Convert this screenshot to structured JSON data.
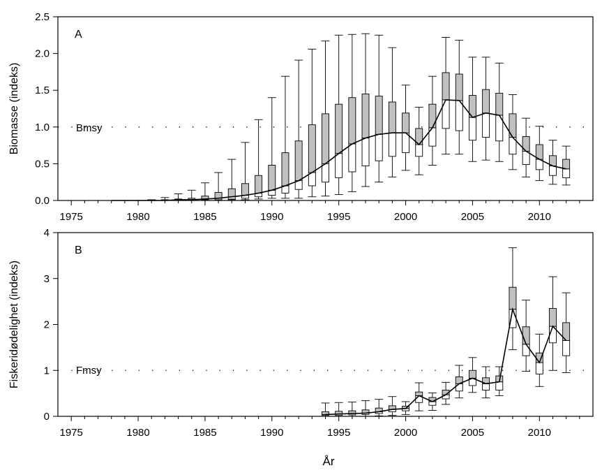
{
  "figure": {
    "xlabel": "År"
  },
  "chart_data": [
    {
      "panel": "A",
      "type": "boxplot",
      "ylabel": "Biomasse (indeks)",
      "ylim": [
        0,
        2.5
      ],
      "yticks": [
        0.0,
        0.5,
        1.0,
        1.5,
        2.0,
        2.5
      ],
      "ytick_labels": [
        "0.0",
        "0.5",
        "1.0",
        "1.5",
        "2.0",
        "2.5"
      ],
      "xlim": [
        1974,
        2014
      ],
      "xticks": [
        1975,
        1980,
        1985,
        1990,
        1995,
        2000,
        2005,
        2010
      ],
      "xtick_labels": [
        "1975",
        "1980",
        "1985",
        "1990",
        "1995",
        "2000",
        "2005",
        "2010"
      ],
      "reference": {
        "label": "Bmsy",
        "value": 1.0
      },
      "series": [
        {
          "name": "Biomasse",
          "years": [
            1978,
            1979,
            1980,
            1981,
            1982,
            1983,
            1984,
            1985,
            1986,
            1987,
            1988,
            1989,
            1990,
            1991,
            1992,
            1993,
            1994,
            1995,
            1996,
            1997,
            1998,
            1999,
            2000,
            2001,
            2002,
            2003,
            2004,
            2005,
            2006,
            2007,
            2008,
            2009,
            2010,
            2011,
            2012
          ],
          "q025": [
            0,
            0,
            0,
            0,
            0,
            0,
            0,
            0,
            0,
            0.01,
            0.01,
            0.02,
            0.03,
            0.03,
            0.03,
            0.05,
            0.06,
            0.08,
            0.12,
            0.19,
            0.25,
            0.32,
            0.41,
            0.35,
            0.48,
            0.63,
            0.63,
            0.53,
            0.55,
            0.53,
            0.42,
            0.32,
            0.27,
            0.22,
            0.21
          ],
          "q25": [
            0,
            0,
            0,
            0,
            0,
            0,
            0,
            0.01,
            0.01,
            0.02,
            0.03,
            0.05,
            0.07,
            0.1,
            0.15,
            0.2,
            0.25,
            0.31,
            0.39,
            0.47,
            0.54,
            0.6,
            0.65,
            0.6,
            0.74,
            0.98,
            0.95,
            0.82,
            0.86,
            0.81,
            0.63,
            0.49,
            0.42,
            0.34,
            0.31
          ],
          "median": [
            0,
            0,
            0,
            0,
            0,
            0.01,
            0.01,
            0.02,
            0.03,
            0.05,
            0.07,
            0.1,
            0.14,
            0.2,
            0.27,
            0.38,
            0.5,
            0.64,
            0.77,
            0.85,
            0.9,
            0.92,
            0.92,
            0.76,
            0.99,
            1.37,
            1.36,
            1.13,
            1.19,
            1.16,
            0.86,
            0.67,
            0.56,
            0.47,
            0.43
          ],
          "q75": [
            0,
            0,
            0,
            0,
            0.01,
            0.02,
            0.03,
            0.06,
            0.11,
            0.16,
            0.23,
            0.34,
            0.48,
            0.65,
            0.81,
            1.03,
            1.18,
            1.31,
            1.4,
            1.45,
            1.42,
            1.34,
            1.19,
            0.98,
            1.31,
            1.74,
            1.72,
            1.43,
            1.51,
            1.46,
            1.18,
            0.87,
            0.76,
            0.61,
            0.56
          ],
          "q975": [
            0,
            0,
            0,
            0.01,
            0.04,
            0.09,
            0.14,
            0.24,
            0.38,
            0.56,
            0.79,
            1.1,
            1.4,
            1.69,
            1.91,
            2.06,
            2.17,
            2.25,
            2.26,
            2.27,
            2.25,
            2.08,
            1.57,
            1.27,
            1.69,
            2.22,
            2.18,
            1.95,
            1.95,
            1.87,
            1.44,
            1.12,
            1.01,
            0.82,
            0.74
          ]
        }
      ]
    },
    {
      "panel": "B",
      "type": "boxplot",
      "ylabel": "Fiskeridødelighet (indeks)",
      "ylim": [
        0,
        4
      ],
      "yticks": [
        0,
        1,
        2,
        3,
        4
      ],
      "ytick_labels": [
        "0",
        "1",
        "2",
        "3",
        "4"
      ],
      "xlim": [
        1974,
        2014
      ],
      "xticks": [
        1975,
        1980,
        1985,
        1990,
        1995,
        2000,
        2005,
        2010
      ],
      "xtick_labels": [
        "1975",
        "1980",
        "1985",
        "1990",
        "1995",
        "2000",
        "2005",
        "2010"
      ],
      "reference": {
        "label": "Fmsy",
        "value": 1.0
      },
      "series": [
        {
          "name": "Fiskeridødelighet",
          "years": [
            1994,
            1995,
            1996,
            1997,
            1998,
            1999,
            2000,
            2001,
            2002,
            2003,
            2004,
            2005,
            2006,
            2007,
            2008,
            2009,
            2010,
            2011,
            2012
          ],
          "q025": [
            0,
            0,
            0,
            0,
            0.01,
            0.02,
            0.04,
            0.12,
            0.13,
            0.26,
            0.4,
            0.52,
            0.4,
            0.45,
            1.45,
            0.98,
            0.65,
            1.0,
            0.95
          ],
          "q25": [
            0.02,
            0.02,
            0.03,
            0.04,
            0.06,
            0.1,
            0.12,
            0.3,
            0.24,
            0.38,
            0.55,
            0.67,
            0.57,
            0.57,
            1.93,
            1.32,
            0.92,
            1.6,
            1.32
          ],
          "median": [
            0.04,
            0.05,
            0.06,
            0.07,
            0.1,
            0.15,
            0.17,
            0.45,
            0.32,
            0.47,
            0.71,
            0.83,
            0.71,
            0.75,
            2.33,
            1.57,
            1.17,
            1.96,
            1.65
          ],
          "q75": [
            0.1,
            0.11,
            0.12,
            0.14,
            0.18,
            0.23,
            0.22,
            0.53,
            0.41,
            0.57,
            0.86,
            1.0,
            0.84,
            0.88,
            2.81,
            1.95,
            1.38,
            2.35,
            2.04
          ],
          "q975": [
            0.29,
            0.3,
            0.31,
            0.34,
            0.37,
            0.43,
            0.32,
            0.73,
            0.51,
            0.74,
            1.11,
            1.28,
            1.08,
            1.08,
            3.67,
            2.53,
            1.79,
            3.04,
            2.69
          ]
        }
      ]
    }
  ]
}
